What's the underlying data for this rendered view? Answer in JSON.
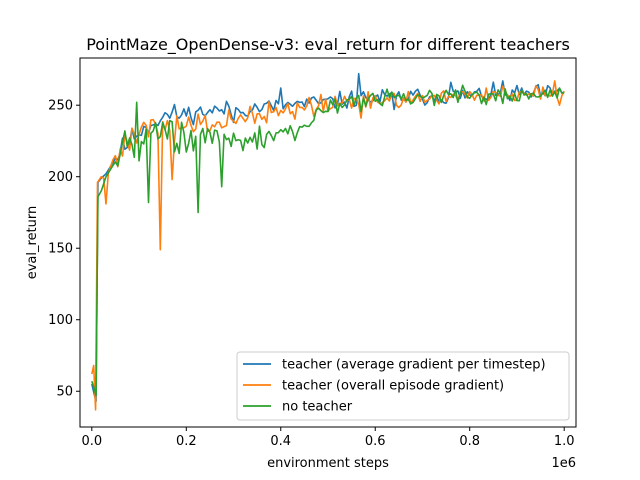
{
  "chart_data": {
    "type": "line",
    "title": "PointMaze_OpenDense-v3: eval_return for different teachers",
    "xlabel": "environment steps",
    "ylabel": "eval_return",
    "x_offset_label": "1e6",
    "xlim": [
      -0.025,
      1.025
    ],
    "ylim": [
      25,
      283
    ],
    "x_ticks": [
      0,
      0.2,
      0.4,
      0.6,
      0.8,
      1.0
    ],
    "x_tick_labels": [
      "0.0",
      "0.2",
      "0.4",
      "0.6",
      "0.8",
      "1.0"
    ],
    "y_ticks": [
      50,
      100,
      150,
      200,
      250
    ],
    "y_tick_labels": [
      "50",
      "100",
      "150",
      "200",
      "250"
    ],
    "grid": false,
    "legend_position": "lower-right",
    "series": [
      {
        "name": "teacher (average gradient per timestep)",
        "color": "#1f77b4",
        "anchors": [
          [
            0.0,
            55
          ],
          [
            0.005,
            48
          ],
          [
            0.009,
            43
          ],
          [
            0.013,
            196
          ],
          [
            0.02,
            199
          ],
          [
            0.03,
            202
          ],
          [
            0.045,
            210
          ],
          [
            0.06,
            218
          ],
          [
            0.08,
            225
          ],
          [
            0.1,
            232
          ],
          [
            0.12,
            236
          ],
          [
            0.14,
            240
          ],
          [
            0.16,
            243
          ],
          [
            0.2,
            244
          ],
          [
            0.25,
            246
          ],
          [
            0.3,
            247
          ],
          [
            0.35,
            248
          ],
          [
            0.4,
            250
          ],
          [
            0.45,
            251
          ],
          [
            0.5,
            252
          ],
          [
            0.55,
            254
          ],
          [
            0.6,
            255
          ],
          [
            0.7,
            256
          ],
          [
            0.8,
            257
          ],
          [
            0.9,
            258
          ],
          [
            1.0,
            258
          ]
        ],
        "noise": [
          [
            0.0,
            0.05,
            0
          ],
          [
            0.05,
            0.2,
            6
          ],
          [
            0.2,
            0.5,
            5
          ],
          [
            0.5,
            0.8,
            5
          ],
          [
            0.8,
            1.0,
            5
          ]
        ],
        "spikes": [
          [
            0.565,
            272
          ],
          [
            0.4,
            262
          ],
          [
            0.3,
            238
          ],
          [
            0.87,
            267
          ],
          [
            0.76,
            266
          ],
          [
            0.64,
            247
          ]
        ],
        "seed": 11
      },
      {
        "name": "teacher (overall episode gradient)",
        "color": "#ff7f0e",
        "anchors": [
          [
            0.0,
            62
          ],
          [
            0.004,
            68
          ],
          [
            0.008,
            37
          ],
          [
            0.012,
            196
          ],
          [
            0.02,
            200
          ],
          [
            0.03,
            198
          ],
          [
            0.045,
            212
          ],
          [
            0.06,
            220
          ],
          [
            0.08,
            228
          ],
          [
            0.1,
            233
          ],
          [
            0.12,
            234
          ],
          [
            0.16,
            235
          ],
          [
            0.2,
            236
          ],
          [
            0.25,
            238
          ],
          [
            0.3,
            240
          ],
          [
            0.35,
            242
          ],
          [
            0.4,
            246
          ],
          [
            0.45,
            248
          ],
          [
            0.5,
            250
          ],
          [
            0.55,
            252
          ],
          [
            0.6,
            254
          ],
          [
            0.7,
            255
          ],
          [
            0.8,
            257
          ],
          [
            0.9,
            258
          ],
          [
            1.0,
            259
          ]
        ],
        "noise": [
          [
            0.0,
            0.05,
            0
          ],
          [
            0.05,
            0.2,
            9
          ],
          [
            0.2,
            0.5,
            7
          ],
          [
            0.5,
            0.8,
            5
          ],
          [
            0.8,
            1.0,
            5
          ]
        ],
        "spikes": [
          [
            0.143,
            149
          ],
          [
            0.028,
            181
          ],
          [
            0.17,
            198
          ],
          [
            0.99,
            250
          ],
          [
            0.98,
            267
          ],
          [
            0.57,
            241
          ]
        ],
        "seed": 27
      },
      {
        "name": "no teacher",
        "color": "#2ca02c",
        "anchors": [
          [
            0.0,
            57
          ],
          [
            0.005,
            52
          ],
          [
            0.009,
            47
          ],
          [
            0.013,
            186
          ],
          [
            0.02,
            190
          ],
          [
            0.03,
            200
          ],
          [
            0.045,
            208
          ],
          [
            0.06,
            215
          ],
          [
            0.08,
            222
          ],
          [
            0.1,
            226
          ],
          [
            0.12,
            228
          ],
          [
            0.16,
            230
          ],
          [
            0.2,
            228
          ],
          [
            0.25,
            226
          ],
          [
            0.3,
            224
          ],
          [
            0.35,
            226
          ],
          [
            0.4,
            230
          ],
          [
            0.45,
            236
          ],
          [
            0.48,
            246
          ],
          [
            0.5,
            250
          ],
          [
            0.55,
            252
          ],
          [
            0.6,
            254
          ],
          [
            0.7,
            256
          ],
          [
            0.8,
            256
          ],
          [
            0.9,
            256
          ],
          [
            1.0,
            258
          ]
        ],
        "noise": [
          [
            0.0,
            0.05,
            0
          ],
          [
            0.05,
            0.2,
            10
          ],
          [
            0.2,
            0.5,
            9
          ],
          [
            0.5,
            0.8,
            5
          ],
          [
            0.8,
            1.0,
            5
          ]
        ],
        "spikes": [
          [
            0.12,
            182
          ],
          [
            0.225,
            175
          ],
          [
            0.095,
            252
          ],
          [
            0.275,
            193
          ],
          [
            0.07,
            232
          ],
          [
            0.99,
            262
          ]
        ],
        "seed": 43
      }
    ]
  }
}
